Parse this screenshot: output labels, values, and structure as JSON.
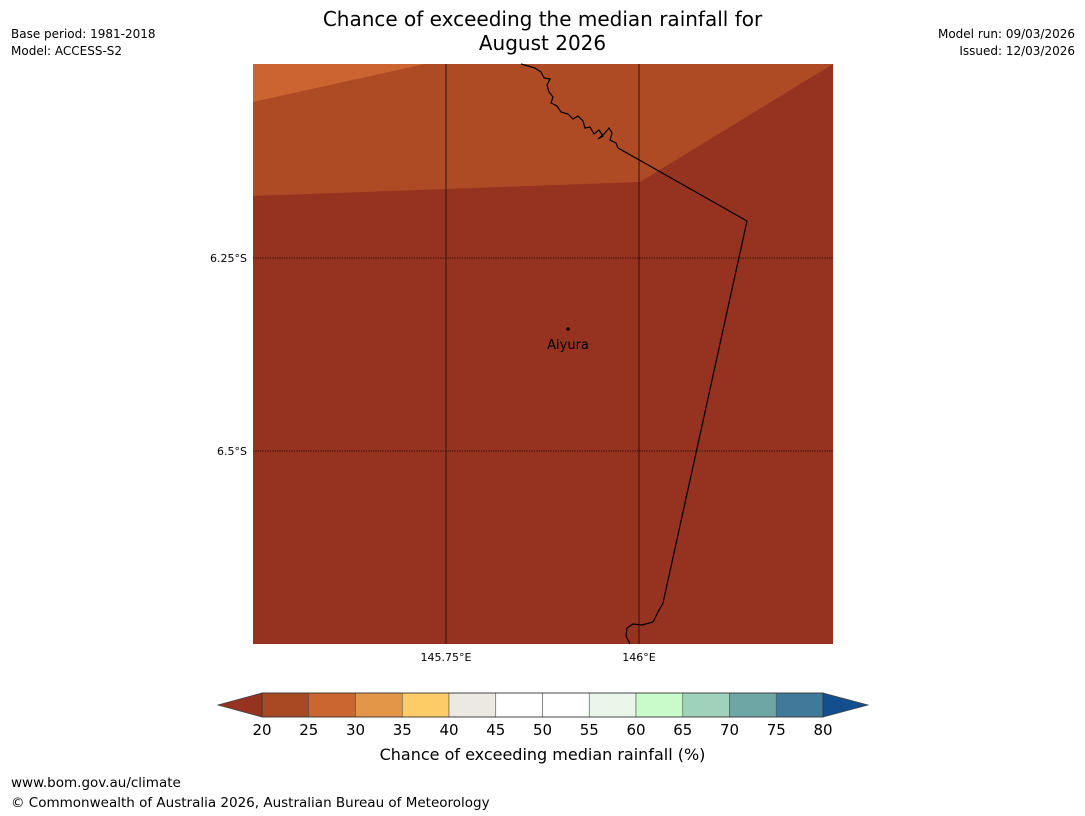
{
  "title": {
    "line1": "Chance of exceeding the median rainfall for",
    "line2": "August 2026"
  },
  "meta": {
    "base_period": "Base period: 1981-2018",
    "model": "Model: ACCESS-S2",
    "model_run": "Model run: 09/03/2026",
    "issued": "Issued: 12/03/2026"
  },
  "map": {
    "lat_labels": [
      "6.25°S",
      "6.5°S"
    ],
    "lon_labels": [
      "145.75°E",
      "146°E"
    ],
    "place": {
      "name": "Aiyura"
    }
  },
  "colorbar": {
    "ticks": [
      "20",
      "25",
      "30",
      "35",
      "40",
      "45",
      "50",
      "55",
      "60",
      "65",
      "70",
      "75",
      "80"
    ],
    "colors": [
      "#a94924",
      "#cc6630",
      "#e39647",
      "#fdcc68",
      "#ece9e3",
      "#ffffff",
      "#ffffff",
      "#eaf6ea",
      "#c9fbca",
      "#9fd1bb",
      "#6ea5a5",
      "#3f7a9b"
    ],
    "under_color": "#963220",
    "over_color": "#134f8c",
    "label": "Chance of exceeding median rainfall (%)"
  },
  "footer": {
    "url": "www.bom.gov.au/climate",
    "copyright": "© Commonwealth of Australia 2026, Australian Bureau of Meteorology"
  }
}
